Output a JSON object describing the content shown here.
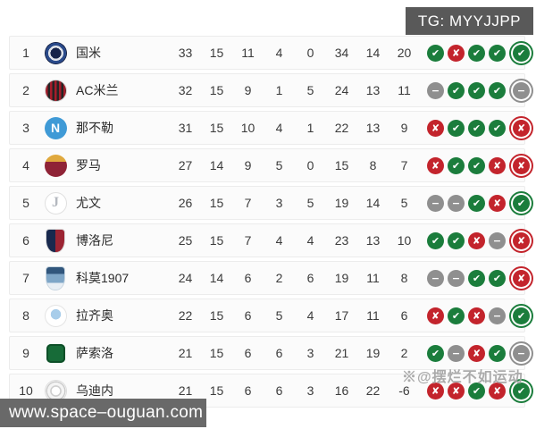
{
  "badge": {
    "label": "TG: MYYJJPP"
  },
  "footer": {
    "url": "www.space–ouguan.com"
  },
  "watermark": {
    "text": "※@摆烂不如运动"
  },
  "colors": {
    "win": "#1b7d3c",
    "loss": "#c3242c",
    "draw": "#8f8f8f",
    "badge_bg": "#595959",
    "footer_bg": "#696969"
  },
  "icons": {
    "win": "✔",
    "loss": "✘",
    "draw": "−",
    "win_name": "form-win-icon",
    "loss_name": "form-loss-icon",
    "draw_name": "form-draw-icon"
  },
  "table": {
    "columns": [
      "points",
      "played",
      "won",
      "lost",
      "drawn",
      "goals_for",
      "goals_against",
      "goal_diff"
    ],
    "rows": [
      {
        "rank": "1",
        "team": "国米",
        "logo": "inter",
        "stats": [
          "33",
          "15",
          "11",
          "4",
          "0",
          "34",
          "14",
          "20"
        ],
        "form": [
          "w",
          "l",
          "w",
          "w",
          "w"
        ]
      },
      {
        "rank": "2",
        "team": "AC米兰",
        "logo": "milan",
        "stats": [
          "32",
          "15",
          "9",
          "1",
          "5",
          "24",
          "13",
          "11"
        ],
        "form": [
          "d",
          "w",
          "w",
          "w",
          "d"
        ]
      },
      {
        "rank": "3",
        "team": "那不勒",
        "logo": "napoli",
        "stats": [
          "31",
          "15",
          "10",
          "4",
          "1",
          "22",
          "13",
          "9"
        ],
        "form": [
          "l",
          "w",
          "w",
          "w",
          "l"
        ]
      },
      {
        "rank": "4",
        "team": "罗马",
        "logo": "roma",
        "stats": [
          "27",
          "14",
          "9",
          "5",
          "0",
          "15",
          "8",
          "7"
        ],
        "form": [
          "l",
          "w",
          "w",
          "l",
          "l"
        ]
      },
      {
        "rank": "5",
        "team": "尤文",
        "logo": "juventus",
        "stats": [
          "26",
          "15",
          "7",
          "3",
          "5",
          "19",
          "14",
          "5"
        ],
        "form": [
          "d",
          "d",
          "w",
          "l",
          "w"
        ]
      },
      {
        "rank": "6",
        "team": "博洛尼",
        "logo": "bologna",
        "stats": [
          "25",
          "15",
          "7",
          "4",
          "4",
          "23",
          "13",
          "10"
        ],
        "form": [
          "w",
          "w",
          "l",
          "d",
          "l"
        ]
      },
      {
        "rank": "7",
        "team": "科莫1907",
        "logo": "como",
        "stats": [
          "24",
          "14",
          "6",
          "2",
          "6",
          "19",
          "11",
          "8"
        ],
        "form": [
          "d",
          "d",
          "w",
          "w",
          "l"
        ]
      },
      {
        "rank": "8",
        "team": "拉齐奥",
        "logo": "lazio",
        "stats": [
          "22",
          "15",
          "6",
          "5",
          "4",
          "17",
          "11",
          "6"
        ],
        "form": [
          "l",
          "w",
          "l",
          "d",
          "w"
        ]
      },
      {
        "rank": "9",
        "team": "萨索洛",
        "logo": "sassuolo",
        "stats": [
          "21",
          "15",
          "6",
          "6",
          "3",
          "21",
          "19",
          "2"
        ],
        "form": [
          "w",
          "d",
          "l",
          "w",
          "d"
        ]
      },
      {
        "rank": "10",
        "team": "乌迪内",
        "logo": "udinese",
        "stats": [
          "21",
          "15",
          "6",
          "6",
          "3",
          "16",
          "22",
          "-6"
        ],
        "form": [
          "l",
          "l",
          "w",
          "l",
          "w"
        ]
      }
    ]
  }
}
